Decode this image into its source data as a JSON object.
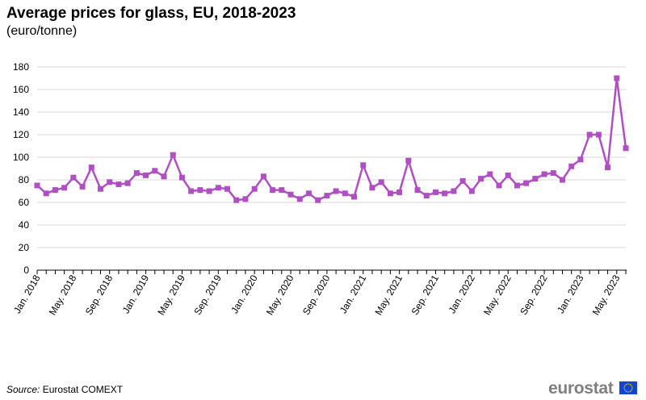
{
  "header": {
    "title": "Average prices for glass, EU, 2018-2023",
    "subtitle": "(euro/tonne)"
  },
  "footer": {
    "source_label": "Source:",
    "source_text": "Eurostat COMEXT",
    "logo_text": "eurostat"
  },
  "colors": {
    "series": "#b04fc4",
    "grid": "#d9d9d9",
    "axis": "#000000",
    "flag_blue": "#0e47cb",
    "flag_star": "#ffd617"
  },
  "chart_data": {
    "type": "line",
    "title": "Average prices for glass, EU, 2018-2023",
    "ylabel": "",
    "xlabel": "",
    "ylim": [
      0,
      180
    ],
    "yticks": [
      0,
      20,
      40,
      60,
      80,
      100,
      120,
      140,
      160,
      180
    ],
    "grid": true,
    "tick_labels": [
      "Jan. 2018",
      "May. 2018",
      "Sep. 2018",
      "Jan. 2019",
      "May. 2019",
      "Sep. 2019",
      "Jan. 2020",
      "May. 2020",
      "Sep. 2020",
      "Jan. 2021",
      "May. 2021",
      "Sep. 2021",
      "Jan. 2022",
      "May. 2022",
      "Sep. 2022",
      "Jan. 2023",
      "May. 2023"
    ],
    "x": [
      "2018-01",
      "2018-02",
      "2018-03",
      "2018-04",
      "2018-05",
      "2018-06",
      "2018-07",
      "2018-08",
      "2018-09",
      "2018-10",
      "2018-11",
      "2018-12",
      "2019-01",
      "2019-02",
      "2019-03",
      "2019-04",
      "2019-05",
      "2019-06",
      "2019-07",
      "2019-08",
      "2019-09",
      "2019-10",
      "2019-11",
      "2019-12",
      "2020-01",
      "2020-02",
      "2020-03",
      "2020-04",
      "2020-05",
      "2020-06",
      "2020-07",
      "2020-08",
      "2020-09",
      "2020-10",
      "2020-11",
      "2020-12",
      "2021-01",
      "2021-02",
      "2021-03",
      "2021-04",
      "2021-05",
      "2021-06",
      "2021-07",
      "2021-08",
      "2021-09",
      "2021-10",
      "2021-11",
      "2021-12",
      "2022-01",
      "2022-02",
      "2022-03",
      "2022-04",
      "2022-05",
      "2022-06",
      "2022-07",
      "2022-08",
      "2022-09",
      "2022-10",
      "2022-11",
      "2022-12",
      "2023-01",
      "2023-02",
      "2023-03",
      "2023-04",
      "2023-05",
      "2023-06"
    ],
    "series": [
      {
        "values": [
          75,
          68,
          71,
          73,
          82,
          74,
          91,
          72,
          78,
          76,
          77,
          86,
          84,
          88,
          83,
          102,
          82,
          70,
          71,
          70,
          73,
          72,
          62,
          63,
          72,
          83,
          71,
          71,
          67,
          63,
          68,
          62,
          66,
          70,
          68,
          65,
          93,
          73,
          78,
          68,
          69,
          97,
          71,
          66,
          69,
          68,
          70,
          79,
          70,
          81,
          85,
          75,
          84,
          75,
          77,
          81,
          85,
          86,
          80,
          92,
          98,
          120,
          120,
          91,
          170,
          108
        ]
      }
    ]
  }
}
